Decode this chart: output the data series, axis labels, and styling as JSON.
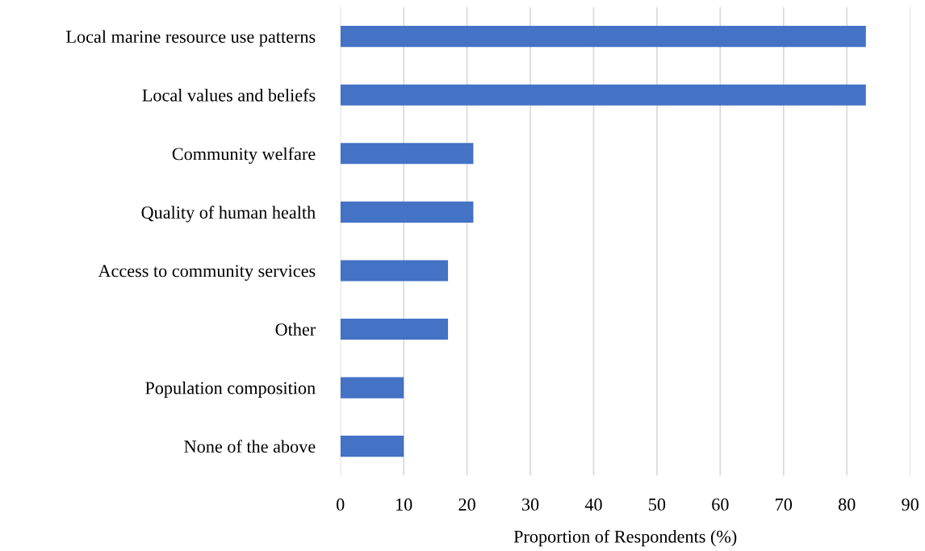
{
  "chart_data": {
    "type": "bar",
    "orientation": "horizontal",
    "categories": [
      "Local marine resource use patterns",
      "Local values and beliefs",
      "Community welfare",
      "Quality of human health",
      "Access to community services",
      "Other",
      "Population composition",
      "None of the above"
    ],
    "values": [
      83,
      83,
      21,
      21,
      17,
      17,
      10,
      10
    ],
    "color": "#4472c4",
    "xlabel": "Proportion of Respondents (%)",
    "xlim": [
      0,
      90
    ],
    "xticks": [
      0,
      10,
      20,
      30,
      40,
      50,
      60,
      70,
      80,
      90
    ],
    "grid": "x",
    "legend": false
  }
}
